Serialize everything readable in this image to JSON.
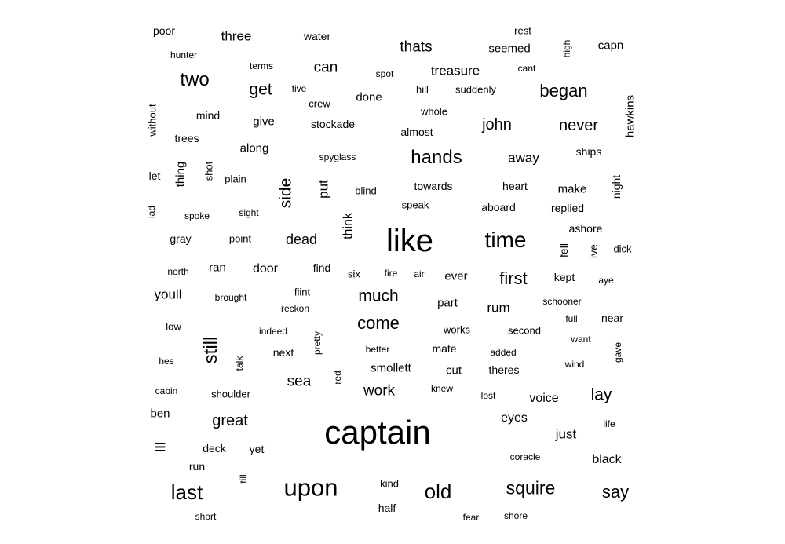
{
  "chart_data": {
    "type": "wordcloud",
    "words": [
      {
        "text": "poor"
      },
      {
        "text": "three"
      },
      {
        "text": "water"
      },
      {
        "text": "rest"
      },
      {
        "text": "capn"
      },
      {
        "text": "high"
      },
      {
        "text": "hunter"
      },
      {
        "text": "thats"
      },
      {
        "text": "seemed"
      },
      {
        "text": "terms"
      },
      {
        "text": "can"
      },
      {
        "text": "treasure"
      },
      {
        "text": "cant"
      },
      {
        "text": "spot"
      },
      {
        "text": "two"
      },
      {
        "text": "five"
      },
      {
        "text": "get"
      },
      {
        "text": "hill"
      },
      {
        "text": "suddenly"
      },
      {
        "text": "began"
      },
      {
        "text": "done"
      },
      {
        "text": "crew"
      },
      {
        "text": "hawkins"
      },
      {
        "text": "without"
      },
      {
        "text": "mind"
      },
      {
        "text": "whole"
      },
      {
        "text": "give"
      },
      {
        "text": "stockade"
      },
      {
        "text": "john"
      },
      {
        "text": "never"
      },
      {
        "text": "almost"
      },
      {
        "text": "trees"
      },
      {
        "text": "along"
      },
      {
        "text": "ships"
      },
      {
        "text": "spyglass"
      },
      {
        "text": "hands"
      },
      {
        "text": "away"
      },
      {
        "text": "thing"
      },
      {
        "text": "shot"
      },
      {
        "text": "let"
      },
      {
        "text": "plain"
      },
      {
        "text": "side"
      },
      {
        "text": "put"
      },
      {
        "text": "blind"
      },
      {
        "text": "towards"
      },
      {
        "text": "heart"
      },
      {
        "text": "make"
      },
      {
        "text": "night"
      },
      {
        "text": "speak"
      },
      {
        "text": "aboard"
      },
      {
        "text": "replied"
      },
      {
        "text": "lad"
      },
      {
        "text": "spoke"
      },
      {
        "text": "sight"
      },
      {
        "text": "think"
      },
      {
        "text": "ashore"
      },
      {
        "text": "like"
      },
      {
        "text": "time"
      },
      {
        "text": "gray"
      },
      {
        "text": "point"
      },
      {
        "text": "dead"
      },
      {
        "text": "fell"
      },
      {
        "text": "ive"
      },
      {
        "text": "dick"
      },
      {
        "text": "north"
      },
      {
        "text": "ran"
      },
      {
        "text": "door"
      },
      {
        "text": "find"
      },
      {
        "text": "six"
      },
      {
        "text": "fire"
      },
      {
        "text": "air"
      },
      {
        "text": "ever"
      },
      {
        "text": "first"
      },
      {
        "text": "kept"
      },
      {
        "text": "aye"
      },
      {
        "text": "youll"
      },
      {
        "text": "flint"
      },
      {
        "text": "brought"
      },
      {
        "text": "much"
      },
      {
        "text": "reckon"
      },
      {
        "text": "part"
      },
      {
        "text": "rum"
      },
      {
        "text": "schooner"
      },
      {
        "text": "full"
      },
      {
        "text": "near"
      },
      {
        "text": "low"
      },
      {
        "text": "come"
      },
      {
        "text": "works"
      },
      {
        "text": "second"
      },
      {
        "text": "indeed"
      },
      {
        "text": "still"
      },
      {
        "text": "pretty"
      },
      {
        "text": "want"
      },
      {
        "text": "next"
      },
      {
        "text": "better"
      },
      {
        "text": "mate"
      },
      {
        "text": "added"
      },
      {
        "text": "gave"
      },
      {
        "text": "hes"
      },
      {
        "text": "talk"
      },
      {
        "text": "smollett"
      },
      {
        "text": "wind"
      },
      {
        "text": "theres"
      },
      {
        "text": "cut"
      },
      {
        "text": "red"
      },
      {
        "text": "sea"
      },
      {
        "text": "cabin"
      },
      {
        "text": "knew"
      },
      {
        "text": "work"
      },
      {
        "text": "lay"
      },
      {
        "text": "shoulder"
      },
      {
        "text": "lost"
      },
      {
        "text": "voice"
      },
      {
        "text": "ben"
      },
      {
        "text": "eyes"
      },
      {
        "text": "great"
      },
      {
        "text": "captain"
      },
      {
        "text": "just"
      },
      {
        "text": "life"
      },
      {
        "text": "deck"
      },
      {
        "text": "yet"
      },
      {
        "text": "coracle"
      },
      {
        "text": "black"
      },
      {
        "text": "run"
      },
      {
        "text": "till"
      },
      {
        "text": "upon"
      },
      {
        "text": "kind"
      },
      {
        "text": "old"
      },
      {
        "text": "squire"
      },
      {
        "text": "say"
      },
      {
        "text": "last"
      },
      {
        "text": "half"
      },
      {
        "text": "short"
      },
      {
        "text": "fear"
      },
      {
        "text": "shore"
      },
      {
        "text": "≡"
      }
    ]
  }
}
